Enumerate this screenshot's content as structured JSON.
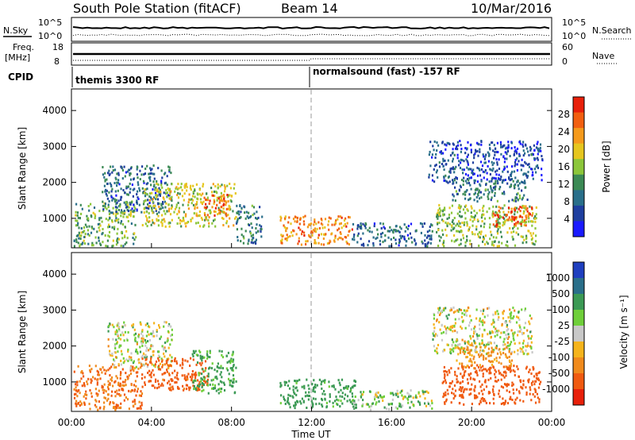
{
  "header": {
    "station": "South Pole Station (fitACF)",
    "beam": "Beam 14",
    "date": "10/Mar/2016"
  },
  "top_panels": {
    "nsky_label": "N.Sky",
    "nsky_ticks": [
      "10^5",
      "10^0"
    ],
    "nsearch_ticks": [
      "10^5",
      "10^0"
    ],
    "nsearch_label": "N.Search",
    "freq_label_1": "Freq.",
    "freq_label_2": "[MHz]",
    "freq_ticks": [
      "18",
      "8"
    ],
    "nave_ticks": [
      "60",
      "0"
    ],
    "nave_label": "Nave",
    "cpid_label": "CPID",
    "cpid_segments": [
      {
        "name": "themis 3300 RF",
        "start_hour": 0
      },
      {
        "name": "normalsound (fast) -157 RF",
        "start_hour": 12
      }
    ]
  },
  "colors": {
    "power_scale": [
      "#1a1aff",
      "#1f3f9f",
      "#2a6f8a",
      "#3c8a55",
      "#8cc63a",
      "#e6c61f",
      "#f59a1c",
      "#f25f10",
      "#e8200a"
    ],
    "velocity_scale": [
      "#1f3fbf",
      "#2a6f8a",
      "#3c9a55",
      "#6fcf3a",
      "#c8c8c8",
      "#f5b41c",
      "#f08a1c",
      "#f05a10",
      "#e8200a"
    ]
  },
  "chart_data": [
    {
      "type": "heatmap",
      "title": "Power",
      "ylabel": "Slant Range [km]",
      "yticks": [
        "1000",
        "2000",
        "3000",
        "4000"
      ],
      "ylim": [
        180,
        4600
      ],
      "xlim_hours": [
        0,
        24
      ],
      "colorbar_label": "Power [dB]",
      "colorbar_ticks": [
        "4",
        "8",
        "12",
        "16",
        "20",
        "24",
        "28"
      ],
      "colorbar_range": [
        0,
        32
      ],
      "regions": [
        {
          "t0": 0.1,
          "t1": 3.2,
          "r0": 250,
          "r1": 1500,
          "value": 14
        },
        {
          "t0": 1.5,
          "t1": 5.0,
          "r0": 1200,
          "r1": 2500,
          "value": 8
        },
        {
          "t0": 3.5,
          "t1": 8.2,
          "r0": 800,
          "r1": 2000,
          "value": 18
        },
        {
          "t0": 6.6,
          "t1": 7.8,
          "r0": 1100,
          "r1": 1700,
          "value": 26
        },
        {
          "t0": 8.2,
          "t1": 9.5,
          "r0": 300,
          "r1": 1400,
          "value": 10
        },
        {
          "t0": 10.4,
          "t1": 14.0,
          "r0": 300,
          "r1": 1100,
          "value": 24
        },
        {
          "t0": 14.0,
          "t1": 18.0,
          "r0": 250,
          "r1": 900,
          "value": 8
        },
        {
          "t0": 18.2,
          "t1": 23.2,
          "r0": 250,
          "r1": 1400,
          "value": 16
        },
        {
          "t0": 21.0,
          "t1": 23.0,
          "r0": 800,
          "r1": 1400,
          "value": 28
        },
        {
          "t0": 17.8,
          "t1": 23.5,
          "r0": 2000,
          "r1": 3200,
          "value": 6
        },
        {
          "t0": 19.0,
          "t1": 22.8,
          "r0": 1500,
          "r1": 2100,
          "value": 10
        }
      ]
    },
    {
      "type": "heatmap",
      "title": "Velocity",
      "ylabel": "Slant Range [km]",
      "yticks": [
        "1000",
        "2000",
        "3000",
        "4000"
      ],
      "ylim": [
        180,
        4600
      ],
      "xlim_hours": [
        0,
        24
      ],
      "xticks": [
        "00:00",
        "04:00",
        "08:00",
        "12:00",
        "16:00",
        "20:00",
        "00:00"
      ],
      "xlabel": "Time UT",
      "colorbar_label": "Velocity [m s⁻¹]",
      "colorbar_ticks": [
        "1000",
        "500",
        "100",
        "25",
        "-25",
        "-100",
        "-500",
        "-1000"
      ],
      "regions": [
        {
          "t0": 0.1,
          "t1": 3.5,
          "r0": 250,
          "r1": 1500,
          "value": -500
        },
        {
          "t0": 1.8,
          "t1": 5.0,
          "r0": 1400,
          "r1": 2700,
          "value": 0
        },
        {
          "t0": 3.5,
          "t1": 6.8,
          "r0": 800,
          "r1": 1700,
          "value": -600
        },
        {
          "t0": 6.0,
          "t1": 8.2,
          "r0": 700,
          "r1": 1900,
          "value": 150
        },
        {
          "t0": 10.4,
          "t1": 14.2,
          "r0": 300,
          "r1": 1100,
          "value": 200
        },
        {
          "t0": 14.0,
          "t1": 18.0,
          "r0": 250,
          "r1": 800,
          "value": 60
        },
        {
          "t0": 18.5,
          "t1": 23.5,
          "r0": 400,
          "r1": 1500,
          "value": -700
        },
        {
          "t0": 18.0,
          "t1": 23.0,
          "r0": 1800,
          "r1": 3100,
          "value": 0
        },
        {
          "t0": 19.2,
          "t1": 22.0,
          "r0": 1400,
          "r1": 2000,
          "value": -150
        }
      ]
    }
  ]
}
